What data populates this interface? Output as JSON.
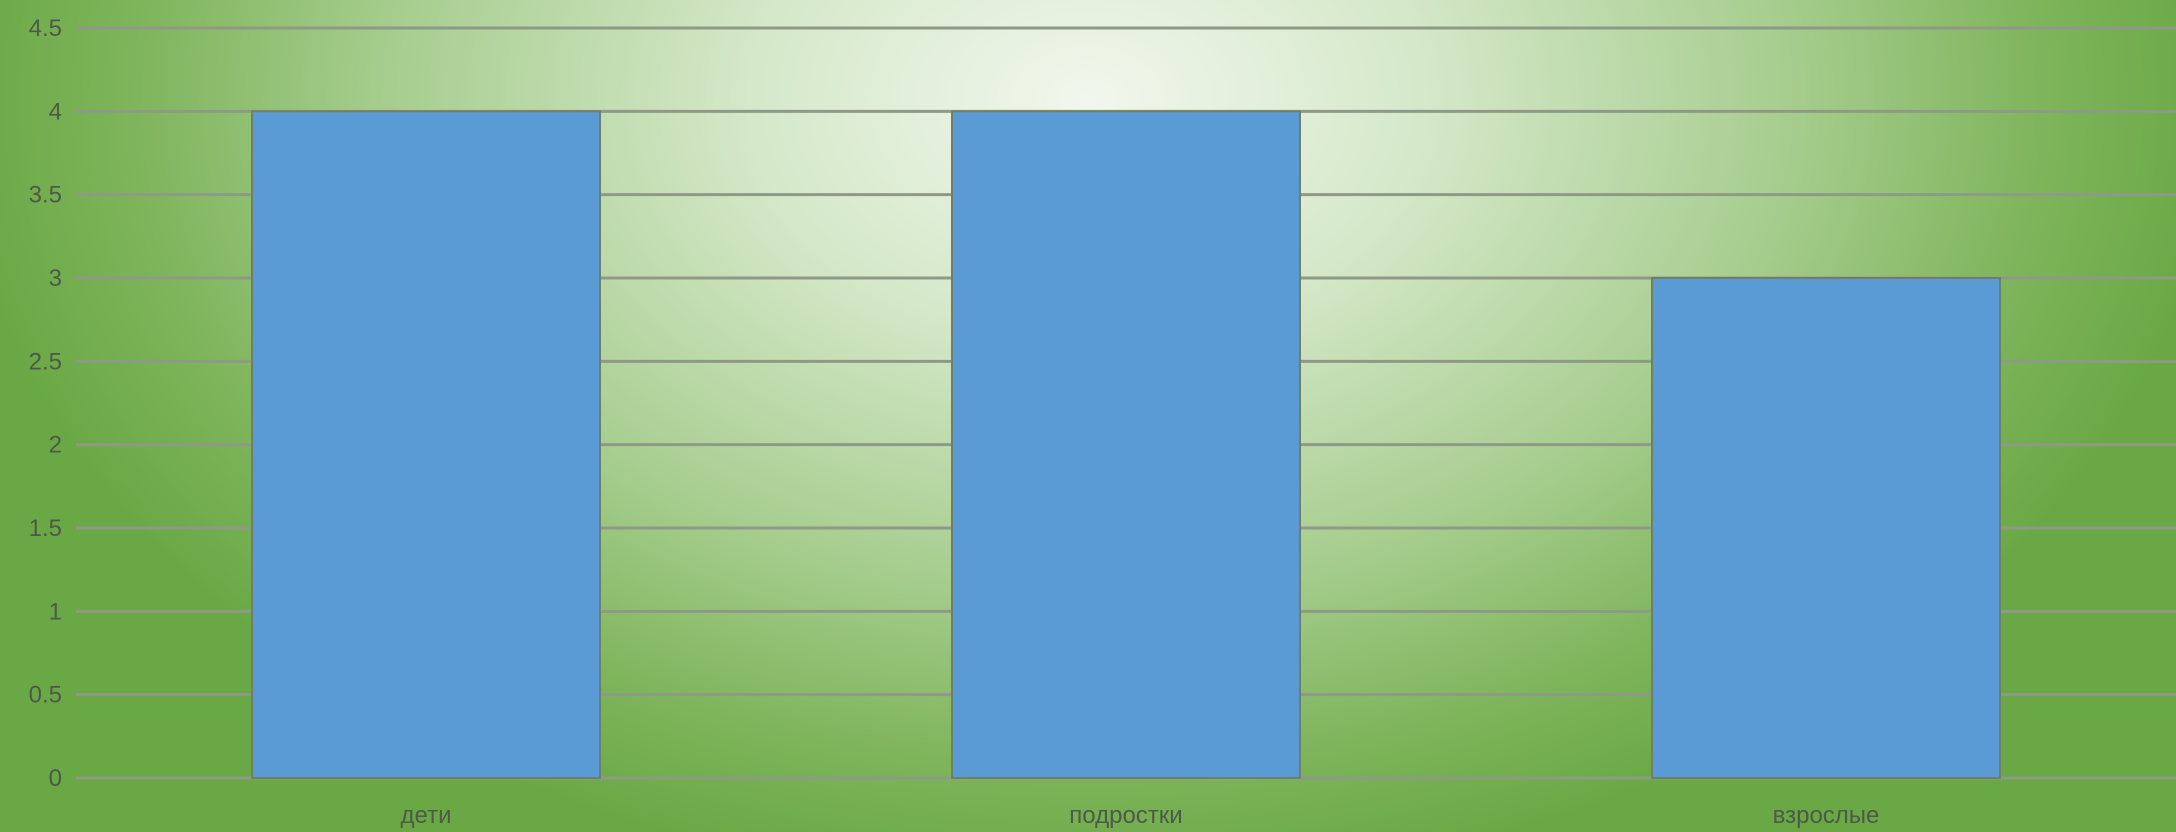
{
  "chart_data": {
    "type": "bar",
    "categories": [
      "дети",
      "подростки",
      "взрослые"
    ],
    "values": [
      4,
      4,
      3
    ],
    "ylim": [
      0,
      4.5
    ],
    "yticks": [
      "0",
      "0.5",
      "1",
      "1.5",
      "2",
      "2.5",
      "3",
      "3.5",
      "4",
      "4.5"
    ],
    "grid": true,
    "legend": "none",
    "colors": {
      "bar": "#5b9bd5",
      "grid": "#8e9a86",
      "background": "#a6cd8e"
    }
  }
}
